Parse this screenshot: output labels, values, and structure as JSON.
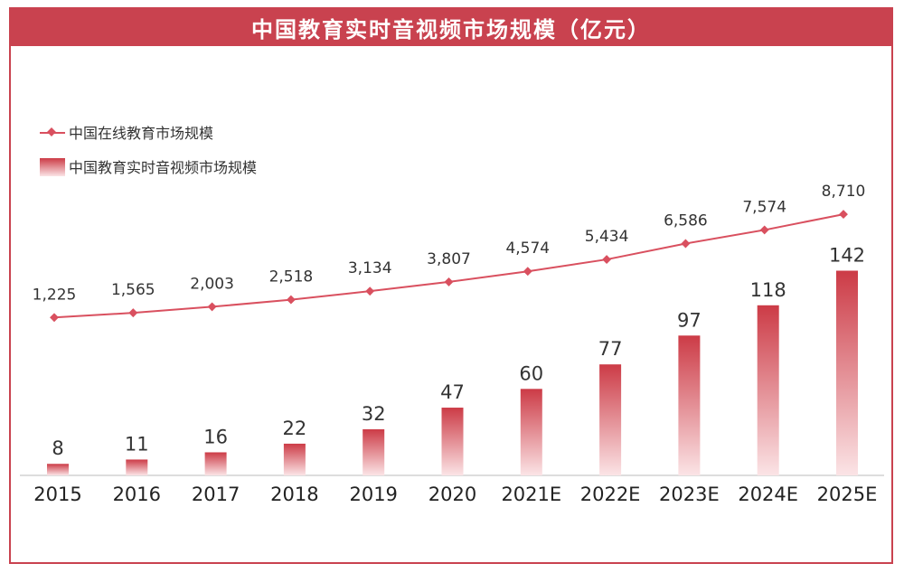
{
  "title": "中国教育实时音视频市场规模（亿元）",
  "chart_data": {
    "type": "bar",
    "categories": [
      "2015",
      "2016",
      "2017",
      "2018",
      "2019",
      "2020",
      "2021E",
      "2022E",
      "2023E",
      "2024E",
      "2025E"
    ],
    "series": [
      {
        "name": "中国在线教育市场规模",
        "type": "line",
        "values": [
          1225,
          1565,
          2003,
          2518,
          3134,
          3807,
          4574,
          5434,
          6586,
          7574,
          8710
        ],
        "labels": [
          "1,225",
          "1,565",
          "2,003",
          "2,518",
          "3,134",
          "3,807",
          "4,574",
          "5,434",
          "6,586",
          "7,574",
          "8,710"
        ]
      },
      {
        "name": "中国教育实时音视频市场规模",
        "type": "bar",
        "values": [
          8,
          11,
          16,
          22,
          32,
          47,
          60,
          77,
          97,
          118,
          142
        ]
      }
    ],
    "legend": "top-left",
    "grid": false,
    "colors": {
      "line": "#d9505f",
      "bar_top": "#cc3b46",
      "bar_bottom": "#fbe4e6",
      "header": "#c9424f"
    }
  }
}
